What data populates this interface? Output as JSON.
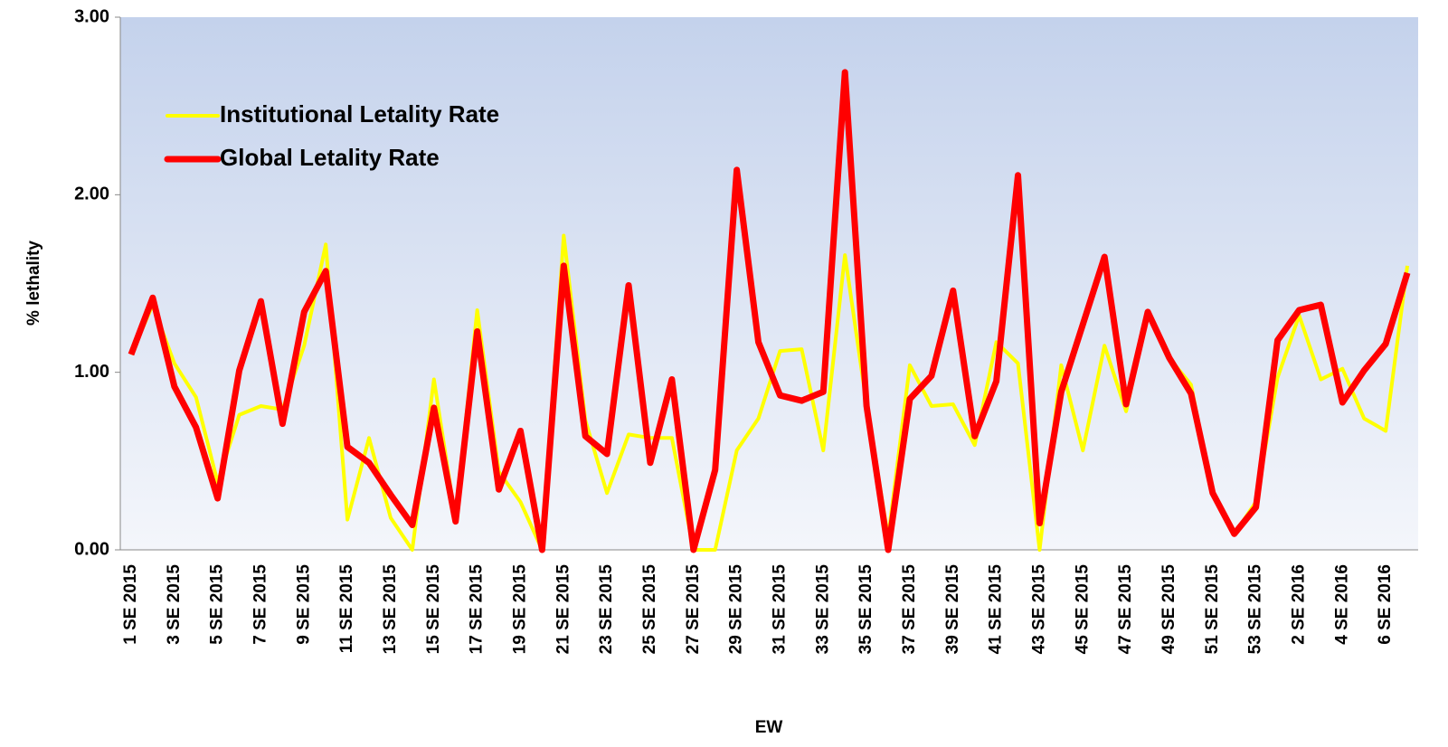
{
  "chart_data": {
    "type": "line",
    "xlabel": "EW",
    "ylabel": "% lethality",
    "categories": [
      "1 SE 2015",
      null,
      "3 SE 2015",
      null,
      "5 SE 2015",
      null,
      "7 SE 2015",
      null,
      "9 SE 2015",
      null,
      "11 SE 2015",
      null,
      "13 SE 2015",
      null,
      "15 SE 2015",
      null,
      "17 SE 2015",
      null,
      "19 SE 2015",
      null,
      "21 SE 2015",
      null,
      "23 SE 2015",
      null,
      "25 SE 2015",
      null,
      "27 SE 2015",
      null,
      "29 SE 2015",
      null,
      "31 SE 2015",
      null,
      "33 SE 2015",
      null,
      "35 SE 2015",
      null,
      "37 SE 2015",
      null,
      "39 SE 2015",
      null,
      "41 SE 2015",
      null,
      "43 SE 2015",
      null,
      "45 SE 2015",
      null,
      "47 SE 2015",
      null,
      "49 SE 2015",
      null,
      "51 SE 2015",
      null,
      "53 SE 2015",
      null,
      "2 SE 2016",
      null,
      "4 SE 2016",
      null,
      "6 SE 2016",
      null
    ],
    "series": [
      {
        "name": "Institutional Letality Rate",
        "color": "#ffff00",
        "values": [
          1.1,
          1.38,
          1.05,
          0.86,
          0.38,
          0.76,
          0.81,
          0.79,
          1.15,
          1.72,
          0.17,
          0.63,
          0.18,
          0.0,
          0.96,
          0.17,
          1.35,
          0.44,
          0.27,
          0.0,
          1.77,
          0.73,
          0.32,
          0.65,
          0.63,
          0.63,
          0.0,
          0.0,
          0.56,
          0.74,
          1.12,
          1.13,
          0.56,
          1.66,
          0.82,
          0.07,
          1.04,
          0.81,
          0.82,
          0.59,
          1.17,
          1.05,
          0.0,
          1.04,
          0.56,
          1.15,
          0.78,
          1.33,
          1.08,
          0.93,
          0.31,
          0.09,
          0.27,
          0.97,
          1.32,
          0.96,
          1.02,
          0.74,
          0.67,
          1.6
        ]
      },
      {
        "name": "Global Letality Rate",
        "color": "#ff0000",
        "values": [
          1.1,
          1.42,
          0.92,
          0.69,
          0.29,
          1.01,
          1.4,
          0.71,
          1.34,
          1.57,
          0.58,
          0.49,
          0.31,
          0.14,
          0.8,
          0.16,
          1.23,
          0.34,
          0.67,
          0.0,
          1.6,
          0.64,
          0.54,
          1.49,
          0.49,
          0.96,
          0.0,
          0.45,
          2.14,
          1.17,
          0.87,
          0.84,
          0.89,
          2.69,
          0.81,
          0.0,
          0.85,
          0.98,
          1.46,
          0.64,
          0.95,
          2.11,
          0.15,
          0.89,
          1.27,
          1.65,
          0.82,
          1.34,
          1.08,
          0.88,
          0.32,
          0.09,
          0.24,
          1.18,
          1.35,
          1.38,
          0.83,
          1.01,
          1.16,
          1.56
        ]
      }
    ],
    "ylim": [
      0,
      3
    ],
    "yticks": [
      {
        "value": 0,
        "label": "0.00"
      },
      {
        "value": 1,
        "label": "1.00"
      },
      {
        "value": 2,
        "label": "2.00"
      },
      {
        "value": 3,
        "label": "3.00"
      }
    ],
    "legend": "upper left"
  }
}
